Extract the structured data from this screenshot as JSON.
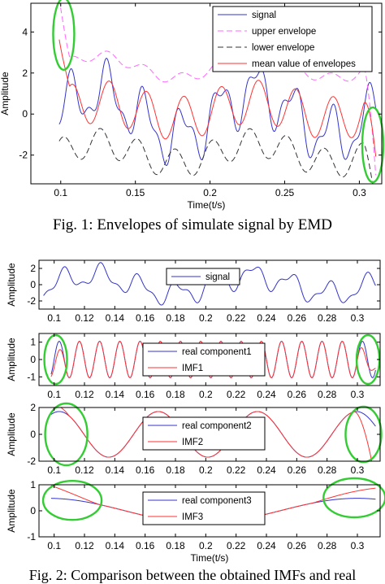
{
  "chart_data": [
    {
      "type": "line",
      "xlabel": "Time(t/s)",
      "ylabel": "Amplitude",
      "xlim": [
        0.08,
        0.315
      ],
      "ylim": [
        -3.4,
        5.4
      ],
      "xticks": [
        0.1,
        0.15,
        0.2,
        0.25,
        0.3
      ],
      "xtick_labels": [
        "0.1",
        "0.15",
        "0.2",
        "0.25",
        "0.3"
      ],
      "yticks": [
        -2,
        0,
        2,
        4
      ],
      "ytick_labels": [
        "-2",
        "0",
        "2",
        "4"
      ],
      "legend_position": "top-right",
      "series": [
        {
          "name": "signal",
          "color": "#3333cc",
          "style": "solid"
        },
        {
          "name": "upper envelope",
          "color": "#ff66ff",
          "style": "dashed"
        },
        {
          "name": "lower envelope",
          "color": "#333333",
          "style": "dashed"
        },
        {
          "name": "mean value of envelopes",
          "color": "#ff3333",
          "style": "solid"
        }
      ],
      "annotations": [
        {
          "shape": "ellipse",
          "color": "#33cc33",
          "x": 0.102,
          "y": 3.9
        },
        {
          "shape": "ellipse",
          "color": "#33cc33",
          "x": 0.309,
          "y": -1.5
        }
      ]
    },
    {
      "type": "line",
      "ylabel": "Amplitude",
      "xlim": [
        0.09,
        0.315
      ],
      "ylim": [
        -3,
        3
      ],
      "xticks": [
        0.1,
        0.12,
        0.14,
        0.16,
        0.18,
        0.2,
        0.22,
        0.24,
        0.26,
        0.28,
        0.3
      ],
      "xtick_labels": [
        "0.1",
        "0.12",
        "0.14",
        "0.16",
        "0.18",
        "0.2",
        "0.22",
        "0.24",
        "0.26",
        "0.28",
        "0.3"
      ],
      "yticks": [
        -2,
        0,
        2
      ],
      "ytick_labels": [
        "-2",
        "0",
        "2"
      ],
      "legend_position": "top-center",
      "series": [
        {
          "name": "signal",
          "color": "#3333cc",
          "style": "solid"
        }
      ]
    },
    {
      "type": "line",
      "ylabel": "Amplitude",
      "xlim": [
        0.09,
        0.315
      ],
      "ylim": [
        -1.5,
        1.5
      ],
      "xticks": [
        0.1,
        0.12,
        0.14,
        0.16,
        0.18,
        0.2,
        0.22,
        0.24,
        0.26,
        0.28,
        0.3
      ],
      "xtick_labels": [
        "0.1",
        "0.12",
        "0.14",
        "0.16",
        "0.18",
        "0.2",
        "0.22",
        "0.24",
        "0.26",
        "0.28",
        "0.3"
      ],
      "yticks": [
        -1,
        0,
        1
      ],
      "ytick_labels": [
        "-1",
        "0",
        "1"
      ],
      "legend_position": "center",
      "series": [
        {
          "name": "real component1",
          "color": "#3333cc",
          "style": "solid"
        },
        {
          "name": "IMF1",
          "color": "#ff3333",
          "style": "solid"
        }
      ],
      "annotations": [
        {
          "shape": "ellipse",
          "color": "#33cc33",
          "x": 0.101,
          "y": 0
        },
        {
          "shape": "ellipse",
          "color": "#33cc33",
          "x": 0.307,
          "y": 0
        }
      ]
    },
    {
      "type": "line",
      "ylabel": "Amplitude",
      "xlim": [
        0.09,
        0.315
      ],
      "ylim": [
        -2,
        2
      ],
      "xticks": [
        0.1,
        0.12,
        0.14,
        0.16,
        0.18,
        0.2,
        0.22,
        0.24,
        0.26,
        0.28,
        0.3
      ],
      "xtick_labels": [
        "0.1",
        "0.12",
        "0.14",
        "0.16",
        "0.18",
        "0.2",
        "0.22",
        "0.24",
        "0.26",
        "0.28",
        "0.3"
      ],
      "yticks": [
        -2,
        0,
        2
      ],
      "ytick_labels": [
        "-2",
        "0",
        "2"
      ],
      "legend_position": "center",
      "series": [
        {
          "name": "real component2",
          "color": "#3333cc",
          "style": "solid"
        },
        {
          "name": "IMF2",
          "color": "#ff3333",
          "style": "solid"
        }
      ],
      "annotations": [
        {
          "shape": "ellipse",
          "color": "#33cc33",
          "x": 0.108,
          "y": 0
        },
        {
          "shape": "ellipse",
          "color": "#33cc33",
          "x": 0.304,
          "y": 0
        }
      ]
    },
    {
      "type": "line",
      "xlabel": "Time(t/s)",
      "ylabel": "Amplitude",
      "xlim": [
        0.09,
        0.315
      ],
      "ylim": [
        -1,
        1
      ],
      "xticks": [
        0.1,
        0.12,
        0.14,
        0.16,
        0.18,
        0.2,
        0.22,
        0.24,
        0.26,
        0.28,
        0.3
      ],
      "xtick_labels": [
        "0.1",
        "0.12",
        "0.14",
        "0.16",
        "0.18",
        "0.2",
        "0.22",
        "0.24",
        "0.26",
        "0.28",
        "0.3"
      ],
      "yticks": [
        -1,
        0,
        1
      ],
      "ytick_labels": [
        "-1",
        "0",
        "1"
      ],
      "legend_position": "center",
      "series": [
        {
          "name": "real component3",
          "color": "#3333cc",
          "style": "solid"
        },
        {
          "name": "IMF3",
          "color": "#ff3333",
          "style": "solid"
        }
      ],
      "annotations": [
        {
          "shape": "ellipse",
          "color": "#33cc33",
          "x": 0.112,
          "y": 0.4
        },
        {
          "shape": "ellipse",
          "color": "#33cc33",
          "x": 0.298,
          "y": 0.5
        }
      ]
    }
  ],
  "captions": {
    "fig1": "Fig. 1: Envelopes of simulate signal by EMD",
    "fig2": "Fig. 2: Comparison between the obtained IMFs and real"
  }
}
